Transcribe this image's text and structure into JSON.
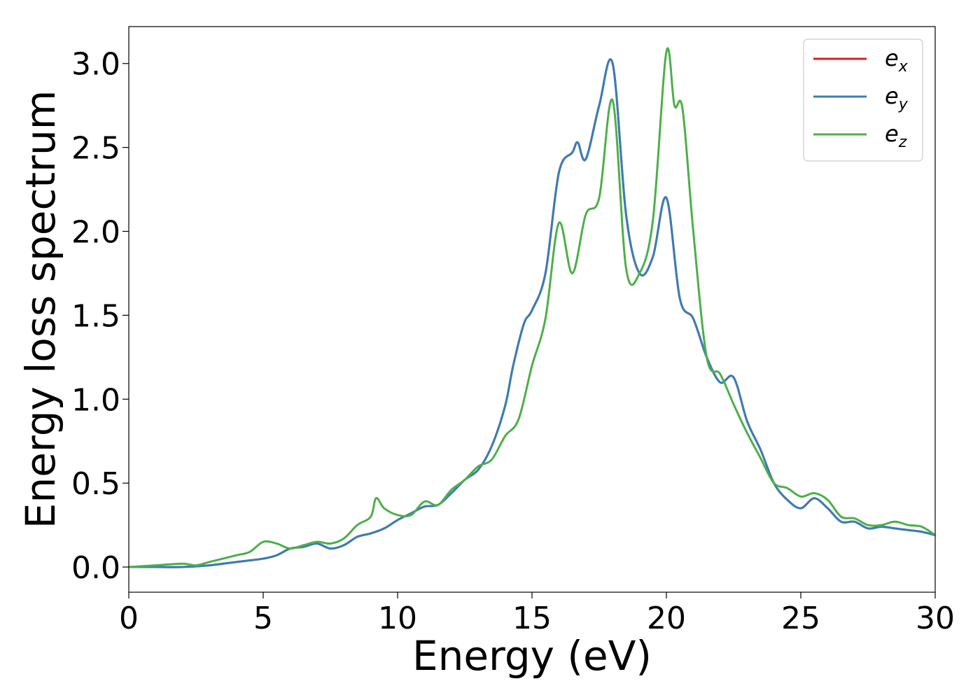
{
  "chart_data": {
    "type": "line",
    "xlabel": "Energy (eV)",
    "ylabel": "Energy loss spectrum",
    "xlim": [
      0,
      30
    ],
    "ylim": [
      -0.15,
      3.22
    ],
    "xticks": [
      0,
      5,
      10,
      15,
      20,
      25,
      30
    ],
    "yticks": [
      0.0,
      0.5,
      1.0,
      1.5,
      2.0,
      2.5,
      3.0
    ],
    "xtick_labels": [
      "0",
      "5",
      "10",
      "15",
      "20",
      "25",
      "30"
    ],
    "ytick_labels": [
      "0.0",
      "0.5",
      "1.0",
      "1.5",
      "2.0",
      "2.5",
      "3.0"
    ],
    "grid": false,
    "legend_position": "top-right",
    "series": [
      {
        "name": "e_x",
        "label_main": "e",
        "label_sub": "x",
        "color": "#e41a1c",
        "x": [
          0,
          1,
          2,
          3,
          4,
          5,
          5.5,
          6,
          6.5,
          7,
          7.5,
          8,
          8.5,
          9,
          9.5,
          10,
          10.5,
          11,
          11.5,
          12,
          12.5,
          13,
          13.5,
          14,
          14.3,
          14.7,
          15,
          15.5,
          16,
          16.5,
          16.7,
          17,
          17.5,
          18,
          18.5,
          19,
          19.5,
          20,
          20.5,
          21,
          21.5,
          22,
          22.5,
          23,
          23.5,
          24,
          24.5,
          25,
          25.5,
          26,
          26.5,
          27,
          27.5,
          28,
          28.5,
          29,
          29.5,
          30
        ],
        "y": [
          0.0,
          0.0,
          0.0,
          0.01,
          0.03,
          0.05,
          0.07,
          0.11,
          0.12,
          0.14,
          0.11,
          0.13,
          0.18,
          0.2,
          0.23,
          0.28,
          0.32,
          0.36,
          0.37,
          0.44,
          0.52,
          0.58,
          0.72,
          0.96,
          1.2,
          1.45,
          1.53,
          1.75,
          2.35,
          2.47,
          2.53,
          2.43,
          2.75,
          3.0,
          2.1,
          1.75,
          1.85,
          2.2,
          1.6,
          1.48,
          1.25,
          1.1,
          1.13,
          0.87,
          0.7,
          0.5,
          0.4,
          0.35,
          0.41,
          0.35,
          0.27,
          0.27,
          0.23,
          0.24,
          0.23,
          0.22,
          0.21,
          0.19
        ]
      },
      {
        "name": "e_y",
        "label_main": "e",
        "label_sub": "y",
        "color": "#377eb8",
        "x": [
          0,
          1,
          2,
          3,
          4,
          5,
          5.5,
          6,
          6.5,
          7,
          7.5,
          8,
          8.5,
          9,
          9.5,
          10,
          10.5,
          11,
          11.5,
          12,
          12.5,
          13,
          13.5,
          14,
          14.3,
          14.7,
          15,
          15.5,
          16,
          16.5,
          16.7,
          17,
          17.5,
          18,
          18.5,
          19,
          19.5,
          20,
          20.5,
          21,
          21.5,
          22,
          22.5,
          23,
          23.5,
          24,
          24.5,
          25,
          25.5,
          26,
          26.5,
          27,
          27.5,
          28,
          28.5,
          29,
          29.5,
          30
        ],
        "y": [
          0.0,
          0.0,
          0.0,
          0.01,
          0.03,
          0.05,
          0.07,
          0.11,
          0.12,
          0.14,
          0.11,
          0.13,
          0.18,
          0.2,
          0.23,
          0.28,
          0.32,
          0.36,
          0.37,
          0.44,
          0.52,
          0.58,
          0.72,
          0.96,
          1.2,
          1.45,
          1.53,
          1.75,
          2.35,
          2.47,
          2.53,
          2.43,
          2.75,
          3.0,
          2.1,
          1.75,
          1.85,
          2.2,
          1.6,
          1.48,
          1.25,
          1.1,
          1.13,
          0.87,
          0.7,
          0.5,
          0.4,
          0.35,
          0.41,
          0.35,
          0.27,
          0.27,
          0.23,
          0.24,
          0.23,
          0.22,
          0.21,
          0.19
        ]
      },
      {
        "name": "e_z",
        "label_main": "e",
        "label_sub": "z",
        "color": "#4daf4a",
        "x": [
          0,
          1,
          2,
          2.5,
          3,
          4,
          4.5,
          5,
          5.5,
          6,
          6.5,
          7,
          7.5,
          8,
          8.5,
          9,
          9.2,
          9.5,
          10,
          10.5,
          11,
          11.5,
          12,
          12.5,
          13,
          13.5,
          14,
          14.5,
          15,
          15.5,
          16,
          16.5,
          17,
          17.5,
          18,
          18.5,
          19,
          19.5,
          20,
          20.3,
          20.6,
          21,
          21.5,
          22,
          22.5,
          23,
          23.5,
          24,
          24.5,
          25,
          25.5,
          26,
          26.5,
          27,
          27.5,
          28,
          28.5,
          29,
          29.5,
          30
        ],
        "y": [
          0.0,
          0.01,
          0.02,
          0.01,
          0.03,
          0.07,
          0.09,
          0.15,
          0.14,
          0.11,
          0.13,
          0.15,
          0.14,
          0.17,
          0.25,
          0.3,
          0.41,
          0.35,
          0.31,
          0.31,
          0.39,
          0.37,
          0.46,
          0.52,
          0.6,
          0.64,
          0.78,
          0.88,
          1.2,
          1.48,
          2.05,
          1.75,
          2.1,
          2.2,
          2.78,
          1.78,
          1.75,
          2.07,
          3.07,
          2.75,
          2.73,
          2.0,
          1.25,
          1.15,
          0.97,
          0.8,
          0.65,
          0.5,
          0.47,
          0.42,
          0.44,
          0.4,
          0.3,
          0.29,
          0.25,
          0.25,
          0.27,
          0.25,
          0.24,
          0.19
        ]
      }
    ]
  }
}
